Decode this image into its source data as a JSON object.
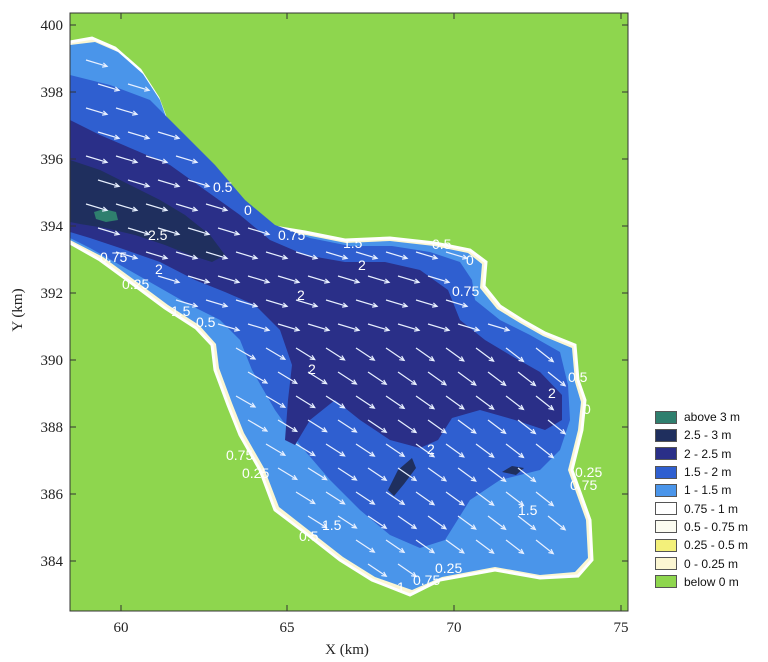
{
  "axes": {
    "x_title": "X (km)",
    "y_title": "Y (km)",
    "x_ticks": [
      "60",
      "65",
      "70",
      "75"
    ],
    "y_ticks": [
      "384",
      "386",
      "388",
      "390",
      "392",
      "394",
      "396",
      "398",
      "400"
    ]
  },
  "contour_labels": [
    "0.5",
    "0",
    "2.5",
    "0.75",
    "2",
    "0.25",
    "1.5",
    "0.5",
    "2",
    "0.75",
    "0.5",
    "0",
    "0.75",
    "2",
    "1.5",
    "2",
    "0.5",
    "2",
    "0",
    "2",
    "0.75",
    "0.25",
    "0.25",
    "0.75",
    "1.5",
    "0.5",
    "1.5",
    "0.75",
    "0.25",
    "1"
  ],
  "legend": [
    {
      "label": "above 3 m",
      "color": "#2f7f6e"
    },
    {
      "label": "2.5 - 3 m",
      "color": "#1f2f5e"
    },
    {
      "label": "2 - 2.5 m",
      "color": "#2a2f88"
    },
    {
      "label": "1.5 - 2 m",
      "color": "#2f5fd0"
    },
    {
      "label": "1 - 1.5 m",
      "color": "#4a95ea"
    },
    {
      "label": "0.75 - 1 m",
      "color": "#ffffff"
    },
    {
      "label": "0.5 - 0.75 m",
      "color": "#fbfbf0"
    },
    {
      "label": "0.25 - 0.5 m",
      "color": "#f3f07a"
    },
    {
      "label": "0 - 0.25 m",
      "color": "#fbf6d2"
    },
    {
      "label": "below 0 m",
      "color": "#8ed64e"
    }
  ],
  "colors": {
    "land": "#8ed64e",
    "water_shallow": "#4a95ea",
    "water_mid": "#2f5fd0",
    "water_deep": "#2a2f88",
    "water_deepest": "#1f2f5e",
    "above_3m": "#2f7f6e",
    "shore": "#fbf6d2",
    "arrow": "#e8f0ff"
  }
}
